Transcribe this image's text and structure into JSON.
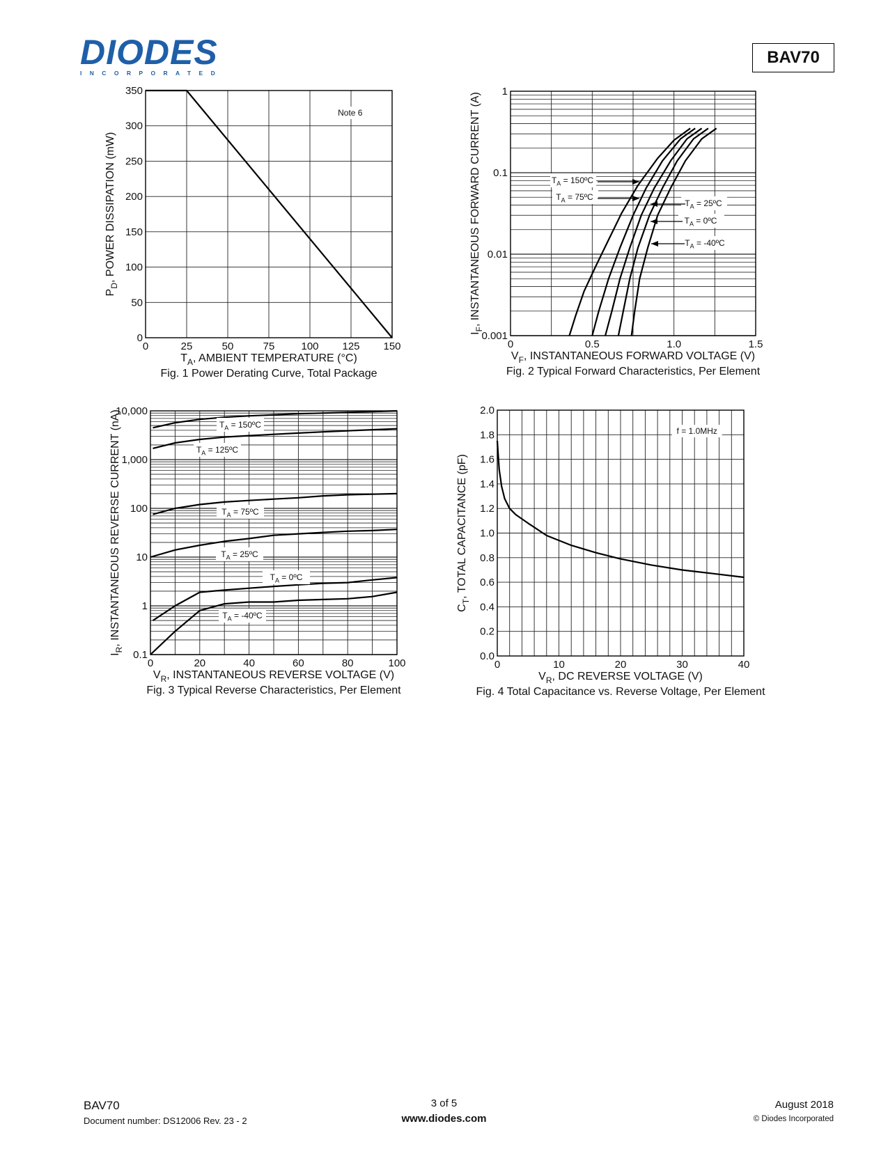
{
  "header": {
    "logo_word": "DIODES",
    "logo_sub": "INCORPORATED",
    "part_number": "BAV70"
  },
  "footer": {
    "part": "BAV70",
    "document": "Document number: DS12006 Rev. 23 - 2",
    "page": "3 of 5",
    "website": "www.diodes.com",
    "date": "August 2018",
    "copyright": "© Diodes Incorporated"
  },
  "chart_data": [
    {
      "type": "line",
      "id": "fig1",
      "caption": "Fig. 1  Power Derating Curve, Total Package",
      "xlabel_main": "T",
      "xlabel_sub": "A",
      "xlabel_rest": ", AMBIENT TEMPERATURE (°C)",
      "ylabel_main": "P",
      "ylabel_sub": "D",
      "ylabel_rest": ", POWER DISSIPATION (mW)",
      "xlim": [
        0,
        150
      ],
      "ylim": [
        0,
        350
      ],
      "xticks": [
        "0",
        "25",
        "50",
        "75",
        "100",
        "125",
        "150"
      ],
      "yticks": [
        "0",
        "50",
        "100",
        "150",
        "200",
        "250",
        "300",
        "350"
      ],
      "annotation": "Note 6",
      "grid": true,
      "series": [
        {
          "x": [
            0,
            25,
            150
          ],
          "y": [
            350,
            350,
            0
          ]
        }
      ]
    },
    {
      "type": "line",
      "id": "fig2",
      "caption": "Fig. 2  Typical Forward Characteristics, Per Element",
      "xlabel_main": "V",
      "xlabel_sub": "F",
      "xlabel_rest": ", INSTANTANEOUS FORWARD VOLTAGE (V)",
      "ylabel_main": "I",
      "ylabel_sub": "F",
      "ylabel_rest": ", INSTANTANEOUS FORWARD CURRENT (A)",
      "xlim": [
        0,
        1.5
      ],
      "ylim": [
        0.001,
        1
      ],
      "yscale": "log",
      "xticks": [
        "0",
        "0.5",
        "1.0",
        "1.5"
      ],
      "yticks": [
        "0.001",
        "0.01",
        "0.1",
        "1"
      ],
      "grid": true,
      "series": [
        {
          "name": "T = 150°C",
          "label_main": "T",
          "label_sub": "A",
          "label_rest": " = 150ºC",
          "x": [
            0.36,
            0.4,
            0.45,
            0.52,
            0.6,
            0.68,
            0.78,
            0.9,
            1.0,
            1.1
          ],
          "y": [
            0.001,
            0.0018,
            0.0035,
            0.007,
            0.015,
            0.032,
            0.07,
            0.15,
            0.25,
            0.35
          ]
        },
        {
          "name": "T = 75°C",
          "label_main": "T",
          "label_sub": "A",
          "label_rest": " = 75ºC",
          "x": [
            0.5,
            0.54,
            0.6,
            0.67,
            0.75,
            0.83,
            0.93,
            1.04,
            1.13
          ],
          "y": [
            0.001,
            0.002,
            0.005,
            0.012,
            0.03,
            0.065,
            0.14,
            0.26,
            0.35
          ]
        },
        {
          "name": "T = 25°C",
          "label_main": "T",
          "label_sub": "A",
          "label_rest": " = 25ºC",
          "x": [
            0.58,
            0.62,
            0.67,
            0.73,
            0.8,
            0.88,
            0.98,
            1.08,
            1.17
          ],
          "y": [
            0.001,
            0.002,
            0.005,
            0.012,
            0.03,
            0.065,
            0.14,
            0.26,
            0.35
          ]
        },
        {
          "name": "T = 0°C",
          "label_main": "T",
          "label_sub": "A",
          "label_rest": " = 0ºC",
          "x": [
            0.66,
            0.69,
            0.73,
            0.78,
            0.85,
            0.93,
            1.02,
            1.12,
            1.21
          ],
          "y": [
            0.001,
            0.002,
            0.005,
            0.012,
            0.03,
            0.065,
            0.14,
            0.26,
            0.35
          ]
        },
        {
          "name": "T = -40°C",
          "label_main": "T",
          "label_sub": "A",
          "label_rest": " = -40ºC",
          "x": [
            0.74,
            0.76,
            0.79,
            0.84,
            0.9,
            0.98,
            1.07,
            1.17,
            1.26
          ],
          "y": [
            0.001,
            0.002,
            0.005,
            0.012,
            0.03,
            0.065,
            0.14,
            0.26,
            0.35
          ]
        }
      ]
    },
    {
      "type": "line",
      "id": "fig3",
      "caption": "Fig. 3  Typical Reverse Characteristics, Per Element",
      "xlabel_main": "V",
      "xlabel_sub": "R",
      "xlabel_rest": ", INSTANTANEOUS REVERSE VOLTAGE (V)",
      "ylabel_main": "I",
      "ylabel_sub": "R",
      "ylabel_rest": ", INSTANTANEOUS REVERSE CURRENT (nA)",
      "xlim": [
        0,
        100
      ],
      "ylim": [
        0.1,
        10000
      ],
      "yscale": "log",
      "xticks": [
        "0",
        "20",
        "40",
        "60",
        "80",
        "100"
      ],
      "yticks": [
        "0.1",
        "1",
        "10",
        "100",
        "1,000",
        "10,000"
      ],
      "grid": true,
      "series": [
        {
          "name": "T = 150°C",
          "label_main": "T",
          "label_sub": "A",
          "label_rest": " = 150ºC",
          "x": [
            1,
            10,
            20,
            30,
            40,
            50,
            60,
            70,
            80,
            90,
            100
          ],
          "y": [
            4500,
            5700,
            6700,
            7400,
            7900,
            8300,
            8700,
            9000,
            9300,
            9600,
            10000
          ]
        },
        {
          "name": "T = 125°C",
          "label_main": "T",
          "label_sub": "A",
          "label_rest": " = 125ºC",
          "x": [
            1,
            10,
            20,
            30,
            40,
            50,
            60,
            70,
            80,
            90,
            100
          ],
          "y": [
            1700,
            2200,
            2600,
            2900,
            3100,
            3300,
            3500,
            3700,
            3900,
            4100,
            4300
          ]
        },
        {
          "name": "T = 75°C",
          "label_main": "T",
          "label_sub": "A",
          "label_rest": " = 75ºC",
          "x": [
            1,
            10,
            20,
            30,
            40,
            50,
            60,
            70,
            80,
            90,
            100
          ],
          "y": [
            75,
            100,
            120,
            135,
            145,
            155,
            165,
            180,
            190,
            195,
            200
          ]
        },
        {
          "name": "T = 25°C",
          "label_main": "T",
          "label_sub": "A",
          "label_rest": " = 25ºC",
          "x": [
            0,
            10,
            20,
            30,
            40,
            50,
            60,
            70,
            80,
            90,
            100
          ],
          "y": [
            10,
            14,
            17.5,
            21,
            24,
            28,
            30,
            32,
            34,
            35,
            37
          ]
        },
        {
          "name": "T = 0°C",
          "label_main": "T",
          "label_sub": "A",
          "label_rest": " = 0ºC",
          "x": [
            1,
            10,
            20,
            30,
            40,
            50,
            60,
            70,
            80,
            90,
            100
          ],
          "y": [
            0.5,
            1.0,
            1.9,
            2.1,
            2.3,
            2.5,
            2.7,
            2.9,
            3.0,
            3.4,
            3.8
          ]
        },
        {
          "name": "T = -40°C",
          "label_main": "T",
          "label_sub": "A",
          "label_rest": " = -40ºC",
          "x": [
            0,
            10,
            20,
            30,
            40,
            50,
            60,
            70,
            80,
            90,
            100
          ],
          "y": [
            0.1,
            0.3,
            0.8,
            1.1,
            1.2,
            1.2,
            1.3,
            1.35,
            1.4,
            1.55,
            1.9
          ]
        }
      ]
    },
    {
      "type": "line",
      "id": "fig4",
      "caption": "Fig. 4  Total Capacitance vs. Reverse Voltage, Per Element",
      "xlabel_main": "V",
      "xlabel_sub": "R",
      "xlabel_rest": ", DC REVERSE VOLTAGE (V)",
      "ylabel_main": "C",
      "ylabel_sub": "T",
      "ylabel_rest": ", TOTAL CAPACITANCE (pF)",
      "xlim": [
        0,
        40
      ],
      "ylim": [
        0,
        2.0
      ],
      "xticks": [
        "0",
        "10",
        "20",
        "30",
        "40"
      ],
      "yticks": [
        "0.0",
        "0.2",
        "0.4",
        "0.6",
        "0.8",
        "1.0",
        "1.2",
        "1.4",
        "1.6",
        "1.8",
        "2.0"
      ],
      "annotation": "f = 1.0MHz",
      "grid": true,
      "series": [
        {
          "x": [
            0,
            0.3,
            0.7,
            1.2,
            2,
            3,
            5,
            8,
            12,
            16,
            20,
            25,
            30,
            35,
            40
          ],
          "y": [
            1.75,
            1.52,
            1.38,
            1.28,
            1.2,
            1.15,
            1.08,
            0.98,
            0.9,
            0.84,
            0.79,
            0.74,
            0.7,
            0.67,
            0.64
          ]
        }
      ]
    }
  ]
}
